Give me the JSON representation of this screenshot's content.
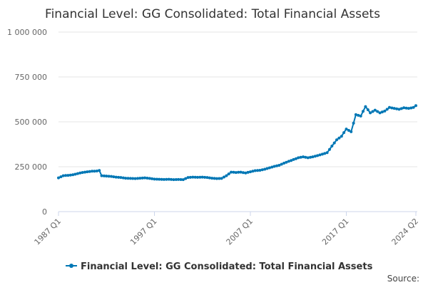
{
  "chart_data": {
    "type": "line",
    "title": "Financial Level: GG Consolidated: Total Financial Assets",
    "xlabel": "",
    "ylabel": "",
    "x_ticks": [
      "1987 Q1",
      "1997 Q1",
      "2007 Q1",
      "2017 Q1",
      "2024 Q2"
    ],
    "y_ticks": [
      "0",
      "250 000",
      "500 000",
      "750 000",
      "1 000 000"
    ],
    "ylim": [
      0,
      1000000
    ],
    "grid": true,
    "legend": "bottom",
    "series": [
      {
        "name": "Financial Level: GG Consolidated: Total Financial Assets",
        "color": "#0077b5",
        "points": [
          [
            "1987 Q1",
            188000
          ],
          [
            "1987 Q3",
            200000
          ],
          [
            "1988 Q1",
            202000
          ],
          [
            "1988 Q3",
            205000
          ],
          [
            "1989 Q1",
            212000
          ],
          [
            "1989 Q3",
            218000
          ],
          [
            "1990 Q1",
            222000
          ],
          [
            "1990 Q3",
            225000
          ],
          [
            "1991 Q1",
            226000
          ],
          [
            "1991 Q2",
            229000
          ],
          [
            "1991 Q3",
            200000
          ],
          [
            "1992 Q1",
            198000
          ],
          [
            "1992 Q3",
            196000
          ],
          [
            "1993 Q1",
            192000
          ],
          [
            "1993 Q3",
            190000
          ],
          [
            "1994 Q1",
            186000
          ],
          [
            "1994 Q3",
            185000
          ],
          [
            "1995 Q1",
            184000
          ],
          [
            "1995 Q3",
            186000
          ],
          [
            "1996 Q1",
            188000
          ],
          [
            "1996 Q3",
            185000
          ],
          [
            "1997 Q1",
            181000
          ],
          [
            "1997 Q3",
            180000
          ],
          [
            "1998 Q1",
            179000
          ],
          [
            "1998 Q3",
            180000
          ],
          [
            "1999 Q1",
            178000
          ],
          [
            "1999 Q3",
            179000
          ],
          [
            "2000 Q1",
            178000
          ],
          [
            "2000 Q3",
            190000
          ],
          [
            "2001 Q1",
            192000
          ],
          [
            "2001 Q3",
            191000
          ],
          [
            "2002 Q1",
            192000
          ],
          [
            "2002 Q3",
            190000
          ],
          [
            "2003 Q1",
            186000
          ],
          [
            "2003 Q3",
            184000
          ],
          [
            "2004 Q1",
            185000
          ],
          [
            "2004 Q3",
            200000
          ],
          [
            "2005 Q1",
            220000
          ],
          [
            "2005 Q3",
            218000
          ],
          [
            "2006 Q1",
            220000
          ],
          [
            "2006 Q3",
            215000
          ],
          [
            "2007 Q1",
            222000
          ],
          [
            "2007 Q3",
            228000
          ],
          [
            "2008 Q1",
            230000
          ],
          [
            "2008 Q3",
            236000
          ],
          [
            "2009 Q1",
            244000
          ],
          [
            "2009 Q3",
            252000
          ],
          [
            "2010 Q1",
            258000
          ],
          [
            "2010 Q3",
            270000
          ],
          [
            "2011 Q1",
            280000
          ],
          [
            "2011 Q3",
            290000
          ],
          [
            "2012 Q1",
            300000
          ],
          [
            "2012 Q3",
            305000
          ],
          [
            "2013 Q1",
            300000
          ],
          [
            "2013 Q3",
            305000
          ],
          [
            "2014 Q1",
            312000
          ],
          [
            "2014 Q3",
            320000
          ],
          [
            "2015 Q1",
            328000
          ],
          [
            "2015 Q3",
            365000
          ],
          [
            "2016 Q1",
            400000
          ],
          [
            "2016 Q3",
            420000
          ],
          [
            "2017 Q1",
            460000
          ],
          [
            "2017 Q3",
            445000
          ],
          [
            "2018 Q1",
            540000
          ],
          [
            "2018 Q3",
            532000
          ],
          [
            "2019 Q1",
            585000
          ],
          [
            "2019 Q3",
            550000
          ],
          [
            "2020 Q1",
            565000
          ],
          [
            "2020 Q3",
            550000
          ],
          [
            "2021 Q1",
            560000
          ],
          [
            "2021 Q3",
            580000
          ],
          [
            "2022 Q1",
            575000
          ],
          [
            "2022 Q3",
            570000
          ],
          [
            "2023 Q1",
            578000
          ],
          [
            "2023 Q3",
            575000
          ],
          [
            "2024 Q1",
            580000
          ],
          [
            "2024 Q2",
            590000
          ]
        ]
      }
    ]
  },
  "legend_label": "Financial Level: GG Consolidated: Total Financial Assets",
  "source_label": "Source:"
}
